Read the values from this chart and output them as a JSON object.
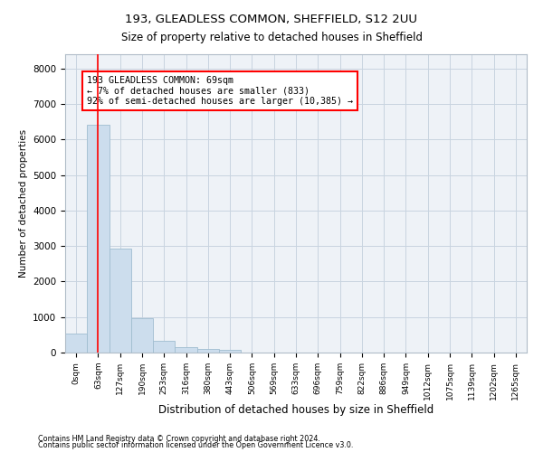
{
  "title1": "193, GLEADLESS COMMON, SHEFFIELD, S12 2UU",
  "title2": "Size of property relative to detached houses in Sheffield",
  "xlabel": "Distribution of detached houses by size in Sheffield",
  "ylabel": "Number of detached properties",
  "bar_color": "#ccdded",
  "bar_edge_color": "#a0bdd0",
  "categories": [
    "0sqm",
    "63sqm",
    "127sqm",
    "190sqm",
    "253sqm",
    "316sqm",
    "380sqm",
    "443sqm",
    "506sqm",
    "569sqm",
    "633sqm",
    "696sqm",
    "759sqm",
    "822sqm",
    "886sqm",
    "949sqm",
    "1012sqm",
    "1075sqm",
    "1139sqm",
    "1202sqm",
    "1265sqm"
  ],
  "values": [
    540,
    6420,
    2920,
    960,
    330,
    160,
    100,
    65,
    0,
    0,
    0,
    0,
    0,
    0,
    0,
    0,
    0,
    0,
    0,
    0,
    0
  ],
  "ylim": [
    0,
    8400
  ],
  "yticks": [
    0,
    1000,
    2000,
    3000,
    4000,
    5000,
    6000,
    7000,
    8000
  ],
  "vline_x": 1.0,
  "annotation_line1": "193 GLEADLESS COMMON: 69sqm",
  "annotation_line2": "← 7% of detached houses are smaller (833)",
  "annotation_line3": "92% of semi-detached houses are larger (10,385) →",
  "footer1": "Contains HM Land Registry data © Crown copyright and database right 2024.",
  "footer2": "Contains public sector information licensed under the Open Government Licence v3.0.",
  "background_color": "#eef2f7",
  "grid_color": "#c8d4e0"
}
